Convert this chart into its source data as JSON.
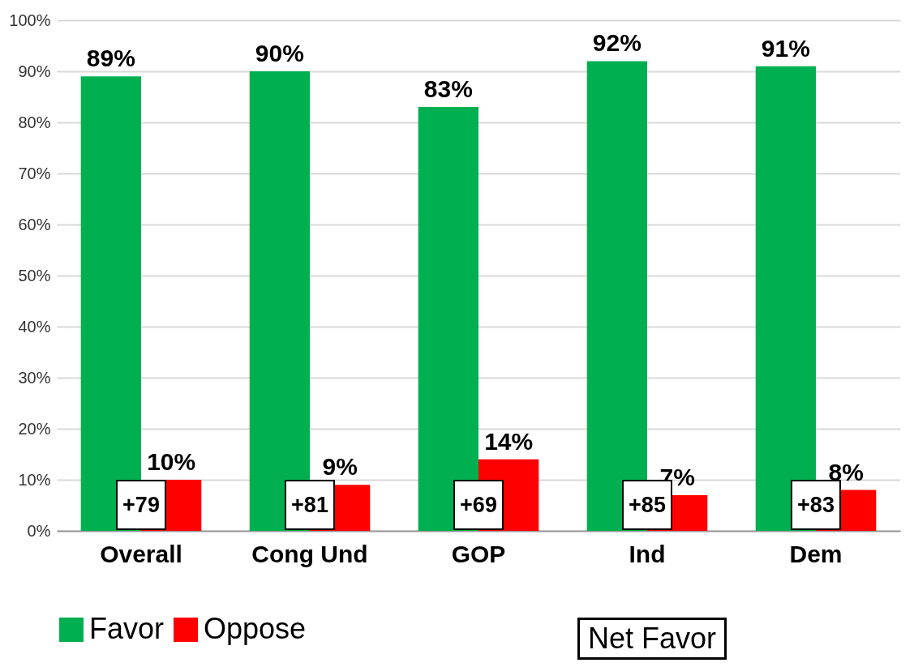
{
  "chart_data": {
    "type": "bar",
    "categories": [
      "Overall",
      "Cong Und",
      "GOP",
      "Ind",
      "Dem"
    ],
    "series": [
      {
        "name": "Favor",
        "color": "#00b050",
        "values": [
          89,
          90,
          83,
          92,
          91
        ],
        "value_labels": [
          "89%",
          "90%",
          "83%",
          "92%",
          "91%"
        ]
      },
      {
        "name": "Oppose",
        "color": "#ff0000",
        "values": [
          10,
          9,
          14,
          7,
          8
        ],
        "value_labels": [
          "10%",
          "9%",
          "14%",
          "7%",
          "8%"
        ]
      }
    ],
    "ylim": [
      0,
      100
    ],
    "yticks": [
      {
        "value": 0,
        "label": "0%"
      },
      {
        "value": 10,
        "label": "10%"
      },
      {
        "value": 20,
        "label": "20%"
      },
      {
        "value": 30,
        "label": "30%"
      },
      {
        "value": 40,
        "label": "40%"
      },
      {
        "value": 50,
        "label": "50%"
      },
      {
        "value": 60,
        "label": "60%"
      },
      {
        "value": 70,
        "label": "70%"
      },
      {
        "value": 80,
        "label": "80%"
      },
      {
        "value": 90,
        "label": "90%"
      },
      {
        "value": 100,
        "label": "100%"
      }
    ],
    "grid": "y",
    "legend": "bottom",
    "annotations": [
      "+79",
      "+81",
      "+69",
      "+85",
      "+83",
      "Net Favor"
    ]
  }
}
